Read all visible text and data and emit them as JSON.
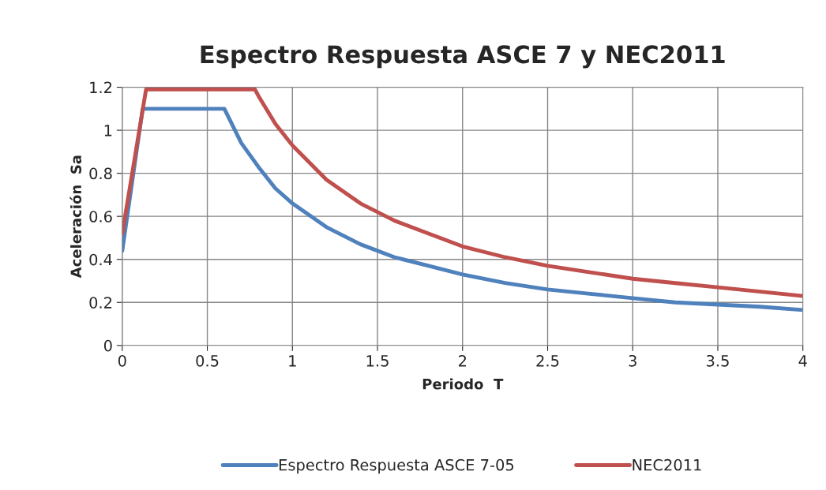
{
  "chart_data": {
    "type": "line",
    "title": "Espectro Respuesta ASCE 7 y NEC2011",
    "xlabel": "Periodo  T",
    "ylabel": "Aceleración  Sa",
    "xlim": [
      0,
      4
    ],
    "xticks": [
      0,
      0.5,
      1,
      1.5,
      2,
      2.5,
      3,
      3.5,
      4
    ],
    "ylim": [
      0,
      1.2
    ],
    "yticks": [
      0,
      0.2,
      0.4,
      0.6,
      0.8,
      1,
      1.2
    ],
    "grid": true,
    "legend": "bottom",
    "marker": "none",
    "line_style": "solid",
    "series": [
      {
        "name": "Espectro Respuesta ASCE 7-05",
        "color": "#4f81bd",
        "x": [
          0,
          0.12,
          0.6,
          0.7,
          0.8,
          0.9,
          1.0,
          1.2,
          1.4,
          1.6,
          1.8,
          2.0,
          2.25,
          2.5,
          2.75,
          3.0,
          3.25,
          3.5,
          3.75,
          4.0
        ],
        "values": [
          0.44,
          1.1,
          1.1,
          0.94,
          0.83,
          0.73,
          0.66,
          0.55,
          0.47,
          0.41,
          0.37,
          0.33,
          0.29,
          0.26,
          0.24,
          0.22,
          0.2,
          0.19,
          0.18,
          0.165
        ]
      },
      {
        "name": "NEC2011",
        "color": "#c0504d",
        "x": [
          0,
          0.14,
          0.78,
          0.8,
          0.9,
          1.0,
          1.2,
          1.4,
          1.6,
          1.8,
          2.0,
          2.25,
          2.5,
          2.75,
          3.0,
          3.25,
          3.5,
          3.75,
          4.0
        ],
        "values": [
          0.52,
          1.19,
          1.19,
          1.16,
          1.03,
          0.93,
          0.77,
          0.66,
          0.58,
          0.52,
          0.46,
          0.41,
          0.37,
          0.34,
          0.31,
          0.29,
          0.27,
          0.25,
          0.23
        ]
      }
    ]
  }
}
